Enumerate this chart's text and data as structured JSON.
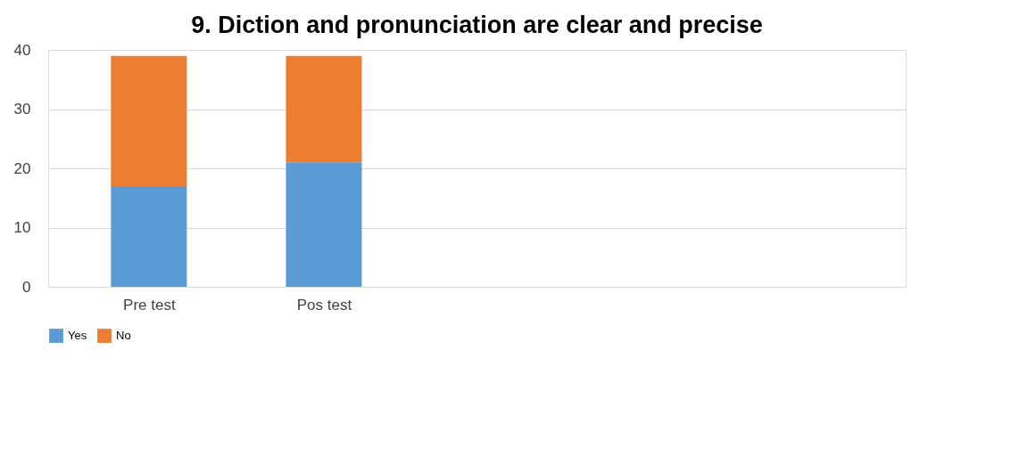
{
  "chart_data": {
    "type": "bar",
    "title": "9. Diction and pronunciation are clear and precise",
    "categories": [
      "Pre test",
      "Pos test"
    ],
    "stacked": true,
    "series": [
      {
        "name": "Yes",
        "color": "#5b9bd5",
        "values": [
          17,
          21
        ]
      },
      {
        "name": "No",
        "color": "#ed7d31",
        "values": [
          22,
          18
        ]
      }
    ],
    "ylim": [
      0,
      40
    ],
    "yticks": [
      0,
      10,
      20,
      30,
      40
    ],
    "grid": "y",
    "legend": "bottom"
  }
}
